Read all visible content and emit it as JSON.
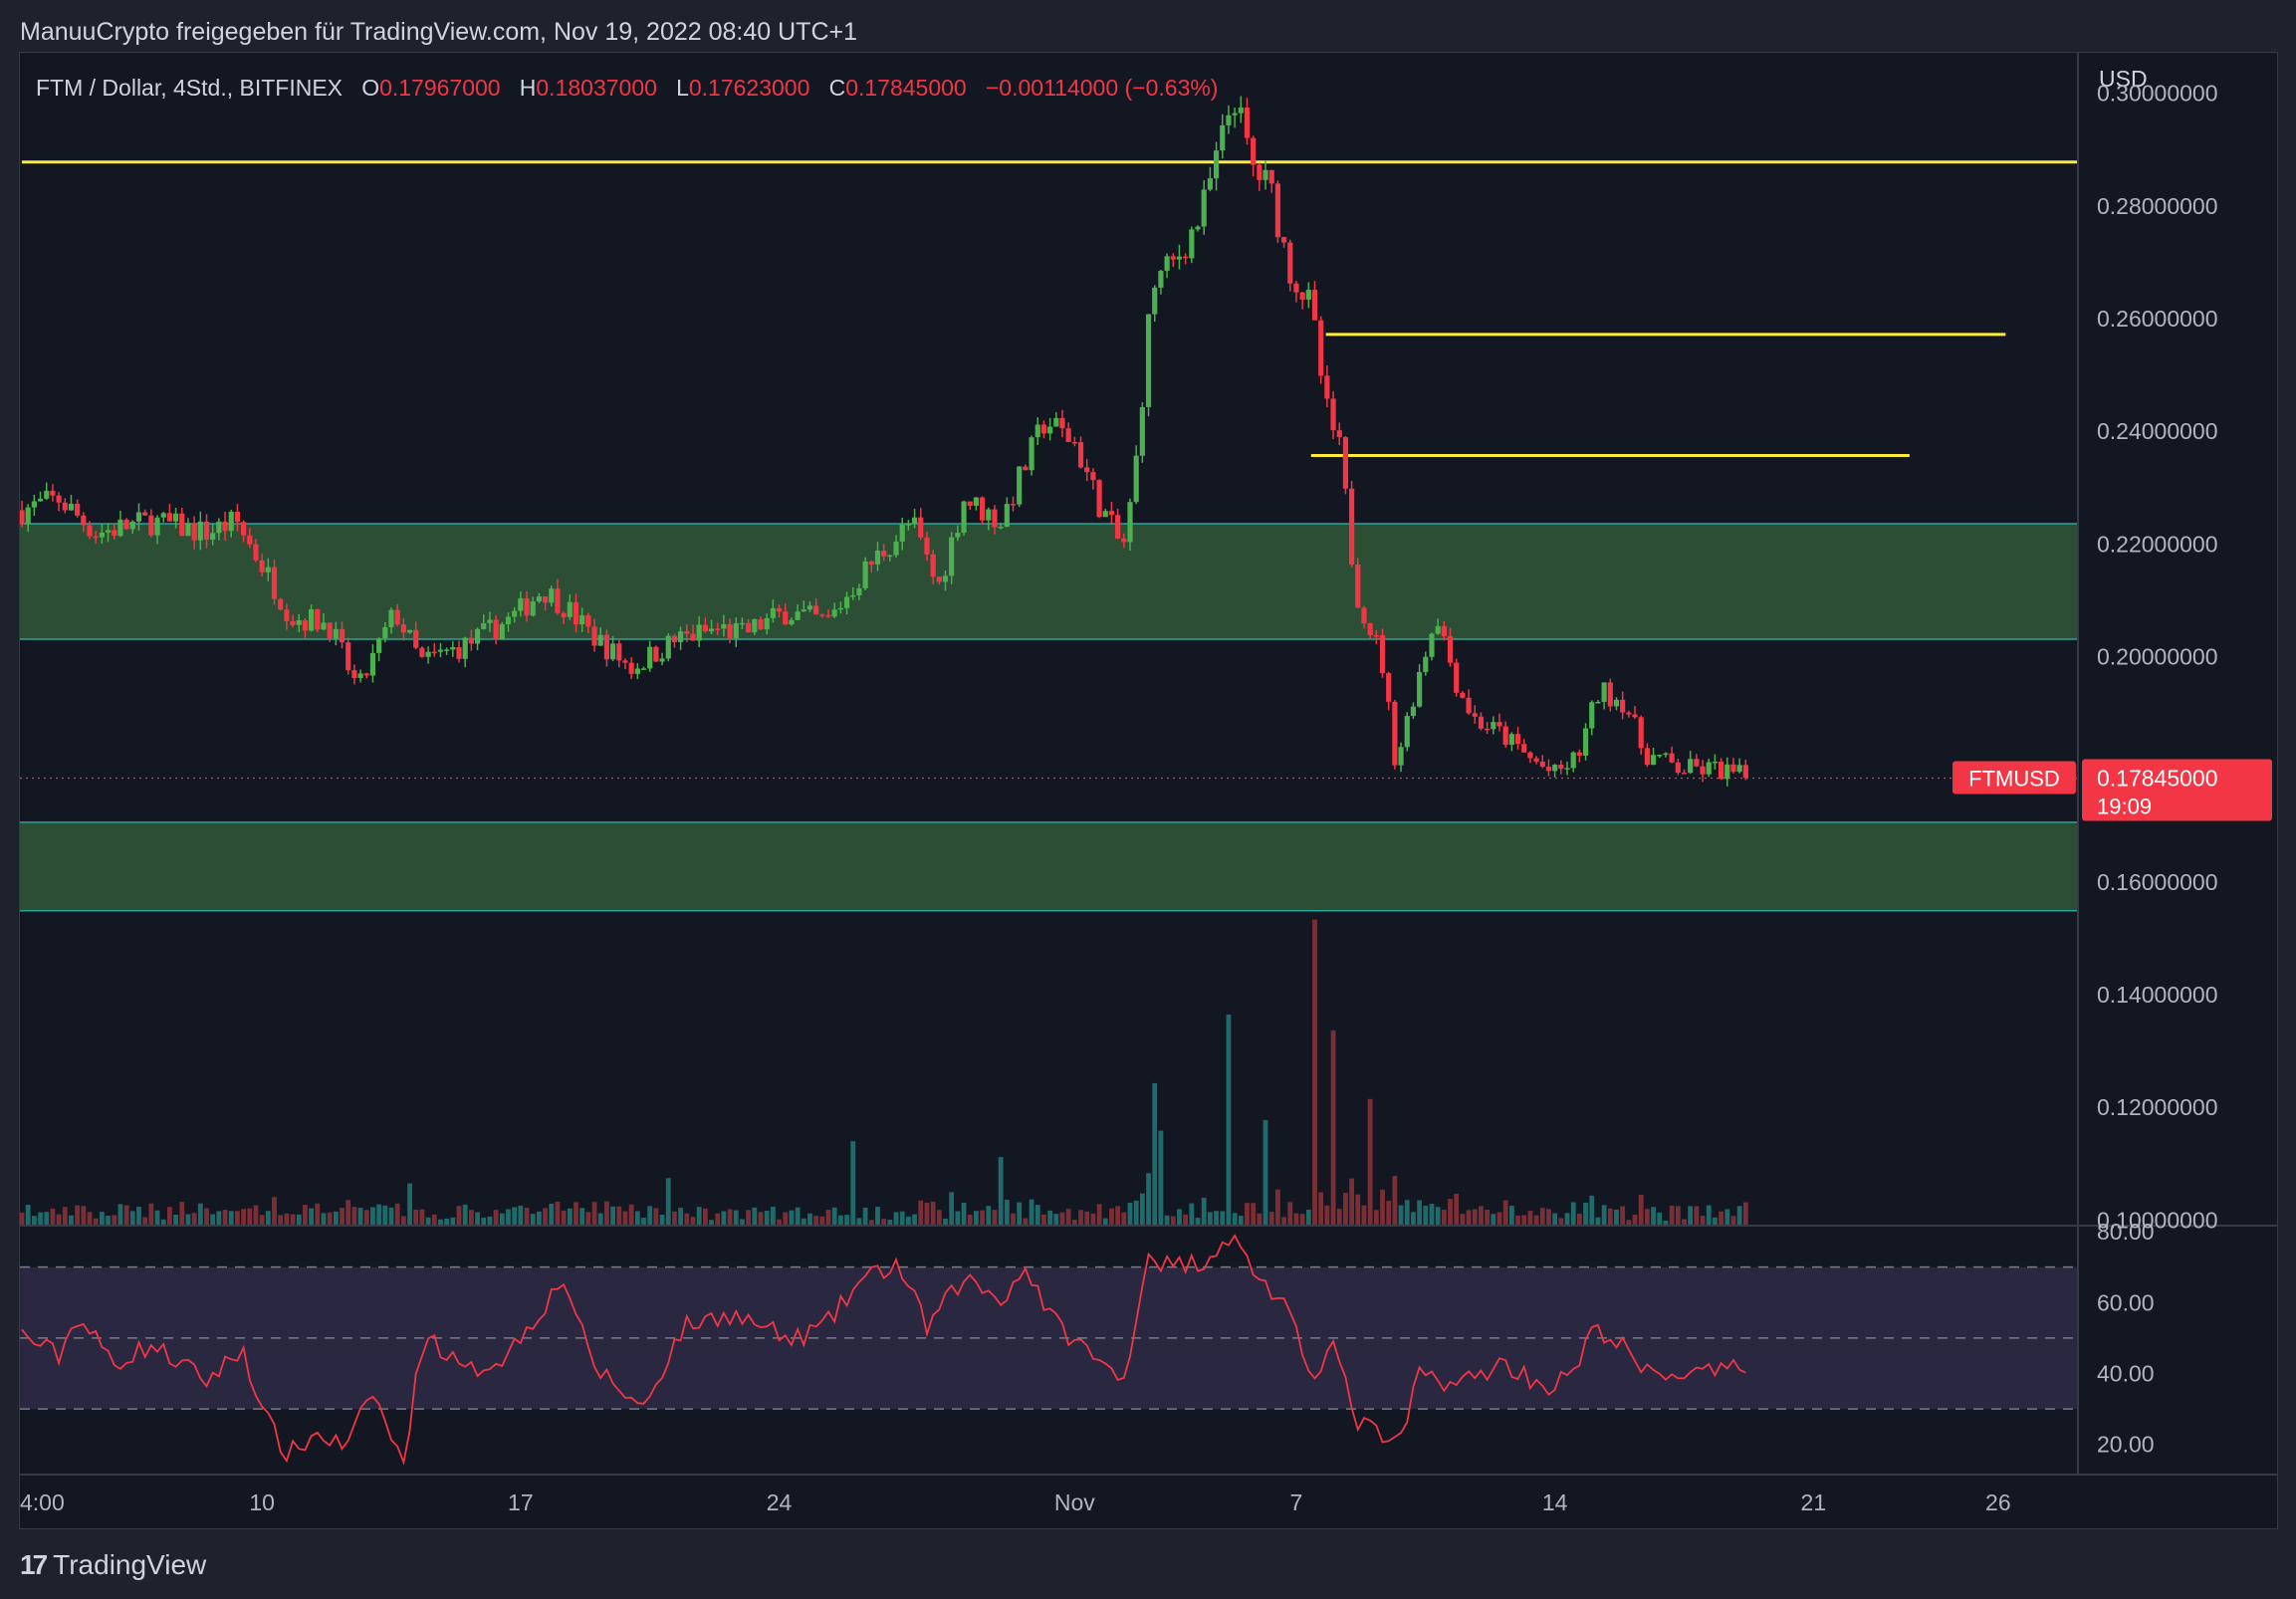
{
  "header": {
    "attribution": "ManuuCrypto freigegeben für TradingView.com, Nov 19, 2022 08:40 UTC+1"
  },
  "legend": {
    "symbol": "FTM / Dollar, 4Std., BITFINEX",
    "open_label": "O",
    "open": "0.17967000",
    "high_label": "H",
    "high": "0.18037000",
    "low_label": "L",
    "low": "0.17623000",
    "close_label": "C",
    "close": "0.17845000",
    "change": "−0.00114000 (−0.63%)"
  },
  "price_tag": {
    "symbol": "FTMUSD",
    "price": "0.17845000",
    "countdown": "19:09"
  },
  "footer": {
    "brand": "TradingView"
  },
  "colors": {
    "up": "#4caf50",
    "down": "#f23645",
    "support_zone_fill": "#2b4e35",
    "support_zone_border": "#26a69a",
    "level_line": "#ffeb3b",
    "rsi_line": "#f23645",
    "rsi_band": "#2a2740",
    "background": "#131722"
  },
  "chart_data": {
    "type": "candlestick",
    "symbol": "FTM / Dollar",
    "interval": "4Std.",
    "exchange": "BITFINEX",
    "price_axis": {
      "unit": "USD",
      "range": [
        0.099,
        0.3072
      ],
      "ticks": [
        "0.30000000",
        "0.28000000",
        "0.26000000",
        "0.24000000",
        "0.22000000",
        "0.20000000",
        "0.16000000",
        "0.14000000",
        "0.12000000",
        "0.10000000"
      ],
      "tick_values": [
        0.3,
        0.28,
        0.26,
        0.24,
        0.22,
        0.2,
        0.16,
        0.14,
        0.12,
        0.1
      ]
    },
    "time_axis": {
      "labels": [
        "4:00",
        "10",
        "17",
        "24",
        "Nov",
        "7",
        "14",
        "21",
        "26"
      ],
      "label_times": [
        -0.5,
        6,
        13,
        20,
        28,
        34,
        41,
        48,
        53
      ]
    },
    "zones": [
      {
        "top": 0.2236,
        "bottom": 0.2031
      },
      {
        "top": 0.1706,
        "bottom": 0.1549
      }
    ],
    "levels": [
      {
        "price": 0.2878,
        "from_time": -0.5,
        "to_time": 55.8
      },
      {
        "price": 0.2572,
        "from_time": 34.8,
        "to_time": 53.2
      },
      {
        "price": 0.2357,
        "from_time": 34.4,
        "to_time": 50.6
      }
    ],
    "keypoints": [
      [
        -0.5,
        0.226
      ],
      [
        0.5,
        0.228
      ],
      [
        1.5,
        0.222
      ],
      [
        3.0,
        0.224
      ],
      [
        4.5,
        0.222
      ],
      [
        5.3,
        0.224
      ],
      [
        6.2,
        0.214
      ],
      [
        6.8,
        0.207
      ],
      [
        7.8,
        0.206
      ],
      [
        8.6,
        0.194
      ],
      [
        9.6,
        0.208
      ],
      [
        10.3,
        0.199
      ],
      [
        11.5,
        0.202
      ],
      [
        12.8,
        0.207
      ],
      [
        13.6,
        0.212
      ],
      [
        14.2,
        0.209
      ],
      [
        14.9,
        0.204
      ],
      [
        16.0,
        0.198
      ],
      [
        17.2,
        0.203
      ],
      [
        18.4,
        0.205
      ],
      [
        19.0,
        0.204
      ],
      [
        20.2,
        0.208
      ],
      [
        21.3,
        0.206
      ],
      [
        22.4,
        0.216
      ],
      [
        23.6,
        0.224
      ],
      [
        24.3,
        0.212
      ],
      [
        25.0,
        0.228
      ],
      [
        26.0,
        0.224
      ],
      [
        27.2,
        0.242
      ],
      [
        28.0,
        0.238
      ],
      [
        28.6,
        0.228
      ],
      [
        29.3,
        0.219
      ],
      [
        29.6,
        0.23
      ],
      [
        30.1,
        0.266
      ],
      [
        30.7,
        0.27
      ],
      [
        31.4,
        0.278
      ],
      [
        32.0,
        0.292
      ],
      [
        32.3,
        0.3
      ],
      [
        32.8,
        0.287
      ],
      [
        33.3,
        0.283
      ],
      [
        33.8,
        0.269
      ],
      [
        34.4,
        0.262
      ],
      [
        34.8,
        0.244
      ],
      [
        35.2,
        0.236
      ],
      [
        35.6,
        0.212
      ],
      [
        36.3,
        0.2
      ],
      [
        36.7,
        0.181
      ],
      [
        37.2,
        0.194
      ],
      [
        37.8,
        0.208
      ],
      [
        38.3,
        0.196
      ],
      [
        38.8,
        0.189
      ],
      [
        39.6,
        0.186
      ],
      [
        40.3,
        0.182
      ],
      [
        41.0,
        0.179
      ],
      [
        41.6,
        0.182
      ],
      [
        42.2,
        0.194
      ],
      [
        42.9,
        0.192
      ],
      [
        43.4,
        0.183
      ],
      [
        44.4,
        0.18
      ],
      [
        45.4,
        0.18
      ],
      [
        46.2,
        0.1785
      ]
    ],
    "volume_spikes": [
      [
        32.1,
        0.4
      ],
      [
        30.1,
        0.27
      ],
      [
        34.5,
        0.58
      ],
      [
        35.0,
        0.37
      ],
      [
        36.0,
        0.24
      ],
      [
        30.4,
        0.18
      ],
      [
        22.0,
        0.16
      ],
      [
        26.0,
        0.13
      ],
      [
        33.1,
        0.2
      ],
      [
        17.0,
        0.09
      ],
      [
        10.0,
        0.08
      ]
    ],
    "rsi": {
      "range": [
        11.5,
        81.7
      ],
      "ticks": [
        "80.00",
        "60.00",
        "40.00",
        "20.00"
      ],
      "tick_values": [
        80,
        60,
        40,
        20
      ],
      "overbought": 70,
      "middle": 50,
      "oversold": 30,
      "keypoints": [
        [
          -0.5,
          51
        ],
        [
          0.5,
          45
        ],
        [
          1.0,
          56
        ],
        [
          2.0,
          43
        ],
        [
          3.0,
          48
        ],
        [
          4.5,
          38
        ],
        [
          5.5,
          47
        ],
        [
          6.0,
          29
        ],
        [
          6.7,
          17
        ],
        [
          7.5,
          23
        ],
        [
          8.3,
          19
        ],
        [
          9.0,
          35
        ],
        [
          9.8,
          14
        ],
        [
          10.4,
          52
        ],
        [
          11.5,
          40
        ],
        [
          12.6,
          45
        ],
        [
          13.4,
          56
        ],
        [
          14.2,
          67
        ],
        [
          14.9,
          43
        ],
        [
          16.3,
          30
        ],
        [
          17.4,
          53
        ],
        [
          18.6,
          57
        ],
        [
          19.4,
          54
        ],
        [
          20.3,
          49
        ],
        [
          21.3,
          54
        ],
        [
          22.2,
          66
        ],
        [
          23.2,
          71
        ],
        [
          24.0,
          53
        ],
        [
          25.0,
          67
        ],
        [
          26.0,
          61
        ],
        [
          26.7,
          70
        ],
        [
          27.4,
          55
        ],
        [
          28.6,
          44
        ],
        [
          29.3,
          37
        ],
        [
          30.0,
          74
        ],
        [
          30.6,
          70
        ],
        [
          31.5,
          72
        ],
        [
          32.2,
          79
        ],
        [
          32.8,
          70
        ],
        [
          33.7,
          58
        ],
        [
          34.4,
          40
        ],
        [
          35.0,
          48
        ],
        [
          35.6,
          27
        ],
        [
          36.8,
          19
        ],
        [
          37.3,
          40
        ],
        [
          38.4,
          37
        ],
        [
          39.6,
          43
        ],
        [
          40.8,
          36
        ],
        [
          41.5,
          40
        ],
        [
          42.1,
          53
        ],
        [
          42.8,
          48
        ],
        [
          43.4,
          40
        ],
        [
          44.5,
          40
        ],
        [
          45.5,
          40
        ],
        [
          46.2,
          42
        ]
      ]
    }
  }
}
